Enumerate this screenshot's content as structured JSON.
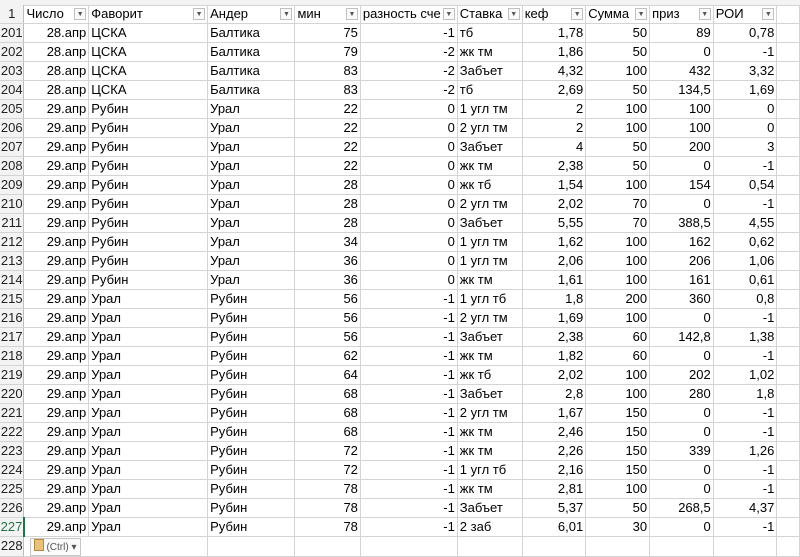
{
  "columns": [
    {
      "label": "Число",
      "align": "num"
    },
    {
      "label": "Фаворит",
      "align": "left"
    },
    {
      "label": "Андер",
      "align": "left"
    },
    {
      "label": "мин",
      "align": "num"
    },
    {
      "label": "разность сче",
      "align": "num"
    },
    {
      "label": "Ставка",
      "align": "left"
    },
    {
      "label": "кеф",
      "align": "num"
    },
    {
      "label": "Сумма",
      "align": "num"
    },
    {
      "label": "приз",
      "align": "num"
    },
    {
      "label": "РОИ",
      "align": "num"
    }
  ],
  "header_row_number": "1",
  "rows": [
    {
      "n": "201",
      "cells": [
        "28.апр",
        "ЦСКА",
        "Балтика",
        "75",
        "-1",
        "тб",
        "1,78",
        "50",
        "89",
        "0,78"
      ]
    },
    {
      "n": "202",
      "cells": [
        "28.апр",
        "ЦСКА",
        "Балтика",
        "79",
        "-2",
        "жк тм",
        "1,86",
        "50",
        "0",
        "-1"
      ]
    },
    {
      "n": "203",
      "cells": [
        "28.апр",
        "ЦСКА",
        "Балтика",
        "83",
        "-2",
        "Забъет",
        "4,32",
        "100",
        "432",
        "3,32"
      ]
    },
    {
      "n": "204",
      "cells": [
        "28.апр",
        "ЦСКА",
        "Балтика",
        "83",
        "-2",
        "тб",
        "2,69",
        "50",
        "134,5",
        "1,69"
      ]
    },
    {
      "n": "205",
      "cells": [
        "29.апр",
        "Рубин",
        "Урал",
        "22",
        "0",
        "1 угл тм",
        "2",
        "100",
        "100",
        "0"
      ]
    },
    {
      "n": "206",
      "cells": [
        "29.апр",
        "Рубин",
        "Урал",
        "22",
        "0",
        "2 угл тм",
        "2",
        "100",
        "100",
        "0"
      ]
    },
    {
      "n": "207",
      "cells": [
        "29.апр",
        "Рубин",
        "Урал",
        "22",
        "0",
        "Забъет",
        "4",
        "50",
        "200",
        "3"
      ]
    },
    {
      "n": "208",
      "cells": [
        "29.апр",
        "Рубин",
        "Урал",
        "22",
        "0",
        "жк тм",
        "2,38",
        "50",
        "0",
        "-1"
      ]
    },
    {
      "n": "209",
      "cells": [
        "29.апр",
        "Рубин",
        "Урал",
        "28",
        "0",
        "жк тб",
        "1,54",
        "100",
        "154",
        "0,54"
      ]
    },
    {
      "n": "210",
      "cells": [
        "29.апр",
        "Рубин",
        "Урал",
        "28",
        "0",
        "2 угл тм",
        "2,02",
        "70",
        "0",
        "-1"
      ]
    },
    {
      "n": "211",
      "cells": [
        "29.апр",
        "Рубин",
        "Урал",
        "28",
        "0",
        "Забъет",
        "5,55",
        "70",
        "388,5",
        "4,55"
      ]
    },
    {
      "n": "212",
      "cells": [
        "29.апр",
        "Рубин",
        "Урал",
        "34",
        "0",
        "1 угл тм",
        "1,62",
        "100",
        "162",
        "0,62"
      ]
    },
    {
      "n": "213",
      "cells": [
        "29.апр",
        "Рубин",
        "Урал",
        "36",
        "0",
        "1 угл тм",
        "2,06",
        "100",
        "206",
        "1,06"
      ]
    },
    {
      "n": "214",
      "cells": [
        "29.апр",
        "Рубин",
        "Урал",
        "36",
        "0",
        "жк тм",
        "1,61",
        "100",
        "161",
        "0,61"
      ]
    },
    {
      "n": "215",
      "cells": [
        "29.апр",
        "Урал",
        "Рубин",
        "56",
        "-1",
        "1 угл тб",
        "1,8",
        "200",
        "360",
        "0,8"
      ]
    },
    {
      "n": "216",
      "cells": [
        "29.апр",
        "Урал",
        "Рубин",
        "56",
        "-1",
        "2 угл тм",
        "1,69",
        "100",
        "0",
        "-1"
      ]
    },
    {
      "n": "217",
      "cells": [
        "29.апр",
        "Урал",
        "Рубин",
        "56",
        "-1",
        "Забъет",
        "2,38",
        "60",
        "142,8",
        "1,38"
      ]
    },
    {
      "n": "218",
      "cells": [
        "29.апр",
        "Урал",
        "Рубин",
        "62",
        "-1",
        "жк тм",
        "1,82",
        "60",
        "0",
        "-1"
      ]
    },
    {
      "n": "219",
      "cells": [
        "29.апр",
        "Урал",
        "Рубин",
        "64",
        "-1",
        "жк тб",
        "2,02",
        "100",
        "202",
        "1,02"
      ]
    },
    {
      "n": "220",
      "cells": [
        "29.апр",
        "Урал",
        "Рубин",
        "68",
        "-1",
        "Забъет",
        "2,8",
        "100",
        "280",
        "1,8"
      ]
    },
    {
      "n": "221",
      "cells": [
        "29.апр",
        "Урал",
        "Рубин",
        "68",
        "-1",
        "2 угл тм",
        "1,67",
        "150",
        "0",
        "-1"
      ]
    },
    {
      "n": "222",
      "cells": [
        "29.апр",
        "Урал",
        "Рубин",
        "68",
        "-1",
        "жк тм",
        "2,46",
        "150",
        "0",
        "-1"
      ]
    },
    {
      "n": "223",
      "cells": [
        "29.апр",
        "Урал",
        "Рубин",
        "72",
        "-1",
        "жк тм",
        "2,26",
        "150",
        "339",
        "1,26"
      ]
    },
    {
      "n": "224",
      "cells": [
        "29.апр",
        "Урал",
        "Рубин",
        "72",
        "-1",
        "1 угл тб",
        "2,16",
        "150",
        "0",
        "-1"
      ]
    },
    {
      "n": "225",
      "cells": [
        "29.апр",
        "Урал",
        "Рубин",
        "78",
        "-1",
        "жк тм",
        "2,81",
        "100",
        "0",
        "-1"
      ]
    },
    {
      "n": "226",
      "cells": [
        "29.апр",
        "Урал",
        "Рубин",
        "78",
        "-1",
        "Забъет",
        "5,37",
        "50",
        "268,5",
        "4,37"
      ]
    },
    {
      "n": "227",
      "cells": [
        "29.апр",
        "Урал",
        "Рубин",
        "78",
        "-1",
        "2 заб",
        "6,01",
        "30",
        "0",
        "-1"
      ],
      "selected": true
    }
  ],
  "last_row_number": "228",
  "paste_options_label": "(Ctrl)",
  "colors": {
    "selection_accent": "#217346",
    "grid": "#d4d4d4",
    "header_bg": "#f3f3f3"
  }
}
